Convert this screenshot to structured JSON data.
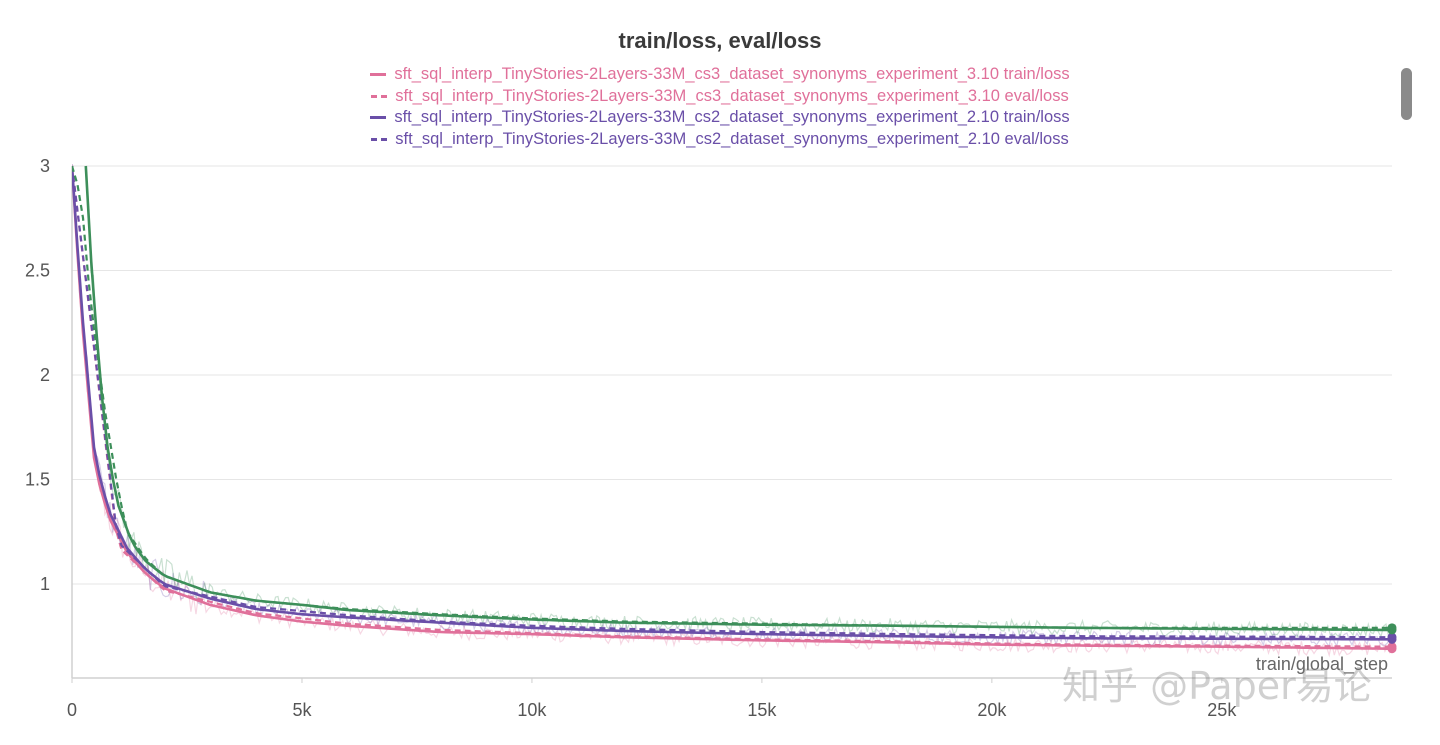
{
  "chart_data": {
    "type": "line",
    "title": "train/loss, eval/loss",
    "xlabel": "train/global_step",
    "ylabel": "",
    "xlim": [
      0,
      28700
    ],
    "ylim": [
      0.55,
      3
    ],
    "x_ticks": [
      0,
      5000,
      10000,
      15000,
      20000,
      25000
    ],
    "x_tick_labels": [
      "0",
      "5k",
      "10k",
      "15k",
      "20k",
      "25k"
    ],
    "y_ticks": [
      1,
      1.5,
      2,
      2.5,
      3
    ],
    "y_tick_labels": [
      "1",
      "1.5",
      "2",
      "2.5",
      "3"
    ],
    "grid": true,
    "legend_position": "top-center",
    "legend": [
      {
        "label": "sft_sql_interp_TinyStories-2Layers-33M_cs3_dataset_synonyms_experiment_3.10 train/loss",
        "color": "#e0709a",
        "style": "solid"
      },
      {
        "label": "sft_sql_interp_TinyStories-2Layers-33M_cs3_dataset_synonyms_experiment_3.10 eval/loss",
        "color": "#e0709a",
        "style": "dashed"
      },
      {
        "label": "sft_sql_interp_TinyStories-2Layers-33M_cs2_dataset_synonyms_experiment_2.10 train/loss",
        "color": "#6a4fa8",
        "style": "solid"
      },
      {
        "label": "sft_sql_interp_TinyStories-2Layers-33M_cs2_dataset_synonyms_experiment_2.10 eval/loss",
        "color": "#6a4fa8",
        "style": "dashed"
      }
    ],
    "series": [
      {
        "color": "#e0709a",
        "style": "solid",
        "x": [
          0,
          200,
          500,
          800,
          1200,
          1600,
          2000,
          3000,
          4000,
          5000,
          6000,
          8000,
          10000,
          12000,
          15000,
          18000,
          20000,
          22000,
          25000,
          28700
        ],
        "y": [
          3.0,
          2.3,
          1.55,
          1.32,
          1.15,
          1.05,
          0.98,
          0.9,
          0.85,
          0.82,
          0.8,
          0.77,
          0.76,
          0.745,
          0.73,
          0.72,
          0.71,
          0.705,
          0.7,
          0.69
        ]
      },
      {
        "color": "#e0709a",
        "style": "dashed",
        "x": [
          0,
          1000,
          2000,
          4000,
          6000,
          8000,
          10000,
          12000,
          15000,
          18000,
          20000,
          22000,
          25000,
          28700
        ],
        "y": [
          3.0,
          1.18,
          0.97,
          0.86,
          0.81,
          0.78,
          0.765,
          0.75,
          0.735,
          0.725,
          0.715,
          0.71,
          0.705,
          0.7
        ]
      },
      {
        "color": "#6a4fa8",
        "style": "solid",
        "x": [
          0,
          200,
          500,
          800,
          1200,
          1600,
          2000,
          3000,
          4000,
          5000,
          6000,
          8000,
          10000,
          12000,
          15000,
          18000,
          20000,
          22000,
          25000,
          28700
        ],
        "y": [
          3.0,
          2.35,
          1.6,
          1.35,
          1.17,
          1.07,
          1.0,
          0.93,
          0.88,
          0.855,
          0.84,
          0.815,
          0.79,
          0.775,
          0.76,
          0.75,
          0.745,
          0.74,
          0.738,
          0.735
        ]
      },
      {
        "color": "#6a4fa8",
        "style": "dashed",
        "x": [
          0,
          1000,
          2000,
          4000,
          6000,
          8000,
          10000,
          12000,
          15000,
          18000,
          20000,
          22000,
          25000,
          28700
        ],
        "y": [
          3.0,
          1.2,
          0.99,
          0.89,
          0.85,
          0.82,
          0.8,
          0.785,
          0.77,
          0.76,
          0.755,
          0.75,
          0.748,
          0.745
        ]
      },
      {
        "color": "#3d8f5a",
        "style": "solid",
        "x": [
          300,
          400,
          600,
          800,
          1000,
          1300,
          1600,
          2000,
          3000,
          4000,
          5000,
          6000,
          8000,
          10000,
          12000,
          15000,
          18000,
          20000,
          22000,
          25000,
          28700
        ],
        "y": [
          3.0,
          2.6,
          2.0,
          1.6,
          1.38,
          1.2,
          1.11,
          1.04,
          0.96,
          0.92,
          0.9,
          0.875,
          0.85,
          0.83,
          0.815,
          0.805,
          0.8,
          0.795,
          0.79,
          0.785,
          0.78
        ]
      },
      {
        "color": "#3d8f5a",
        "style": "dashed",
        "x": [
          0,
          200,
          400,
          700,
          1000,
          1200,
          1600,
          2000,
          3000,
          4000,
          6000,
          8000,
          10000,
          12000,
          15000,
          18000,
          20000,
          22000,
          25000,
          28700
        ],
        "y": [
          3.0,
          2.85,
          2.35,
          1.85,
          1.45,
          1.25,
          1.12,
          1.04,
          0.96,
          0.92,
          0.88,
          0.855,
          0.835,
          0.82,
          0.81,
          0.8,
          0.795,
          0.79,
          0.79,
          0.79
        ]
      }
    ]
  },
  "watermark": "知乎 @Paper易论"
}
